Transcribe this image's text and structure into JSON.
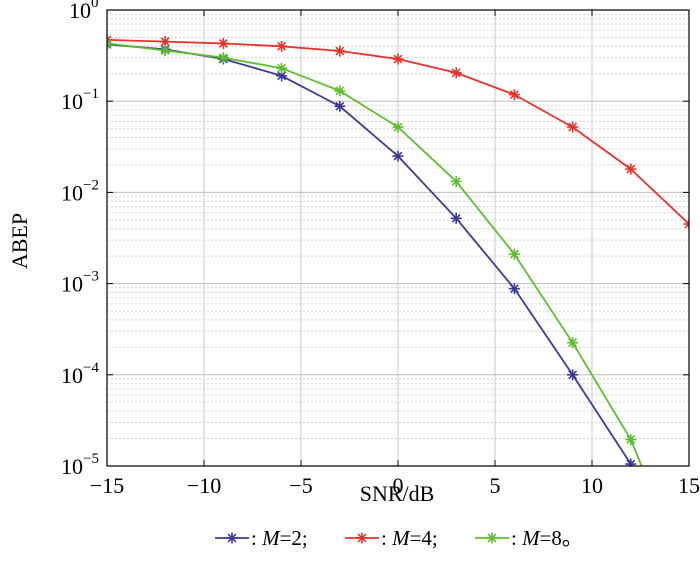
{
  "chart_data": {
    "type": "line",
    "title": "",
    "xlabel": "SNR/dB",
    "ylabel": "ABEP",
    "xlim": [
      -15,
      15
    ],
    "ylim": [
      1e-05,
      1
    ],
    "yscale": "log",
    "grid": true,
    "legend_position": "bottom",
    "x_ticks": [
      -15,
      -10,
      -5,
      0,
      5,
      10,
      15
    ],
    "x_tick_labels": [
      "−15",
      "−10",
      "−5",
      "0",
      "5",
      "10",
      "15"
    ],
    "y_ticks": [
      {
        "value": 1,
        "base": "10",
        "exp": "0"
      },
      {
        "value": 0.1,
        "base": "10",
        "exp": "−1"
      },
      {
        "value": 0.01,
        "base": "10",
        "exp": "−2"
      },
      {
        "value": 0.001,
        "base": "10",
        "exp": "−3"
      },
      {
        "value": 0.0001,
        "base": "10",
        "exp": "−4"
      },
      {
        "value": 1e-05,
        "base": "10",
        "exp": "−5"
      }
    ],
    "series": [
      {
        "name": "M=2",
        "legend_prefix": ": ",
        "legend_var": "M",
        "legend_value": "=2;",
        "color": "#3a3a9c",
        "x": [
          -15,
          -12,
          -9,
          -6,
          -3,
          0,
          3,
          6,
          9,
          12
        ],
        "y": [
          0.42,
          0.37,
          0.29,
          0.19,
          0.088,
          0.025,
          0.0052,
          0.00088,
          0.0001,
          1.05e-05
        ],
        "line_end": {
          "x": 12.4,
          "y": 7e-06
        }
      },
      {
        "name": "M=4",
        "legend_prefix": ": ",
        "legend_var": "M",
        "legend_value": "=4;",
        "color": "#e8332a",
        "x": [
          -15,
          -12,
          -9,
          -6,
          -3,
          0,
          3,
          6,
          9,
          12,
          15
        ],
        "y": [
          0.47,
          0.45,
          0.43,
          0.4,
          0.355,
          0.29,
          0.205,
          0.118,
          0.052,
          0.018,
          0.0045
        ],
        "line_end": null
      },
      {
        "name": "M=8",
        "legend_prefix": ": ",
        "legend_var": "M",
        "legend_value": "=8。",
        "color": "#5cbf2e",
        "x": [
          -15,
          -12,
          -9,
          -6,
          -3,
          0,
          3,
          6,
          9,
          12
        ],
        "y": [
          0.43,
          0.36,
          0.3,
          0.23,
          0.13,
          0.052,
          0.0132,
          0.0021,
          0.000225,
          1.95e-05
        ],
        "line_end": {
          "x": 12.8,
          "y": 7.5e-06
        }
      }
    ]
  }
}
